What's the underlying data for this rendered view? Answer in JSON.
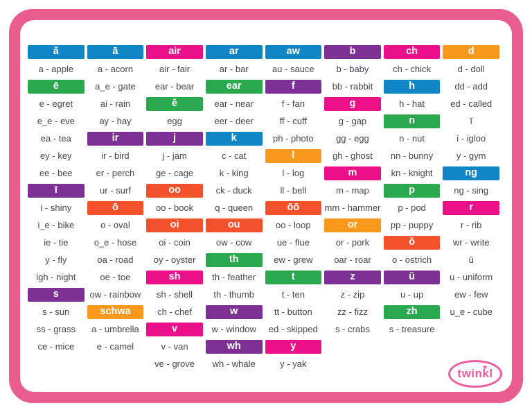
{
  "palette": {
    "blue": "#1186c6",
    "green": "#29a84d",
    "purple": "#7d3194",
    "pink": "#ec0f8a",
    "red": "#f3512b",
    "orange": "#f8981d",
    "frame_pink": "#e95c90",
    "logo_pink": "#ef5ba1",
    "text": "#474350"
  },
  "logo": {
    "label": "twinkl",
    "star": "★"
  },
  "columns": [
    {
      "cells": [
        {
          "t": "h",
          "label": "ă",
          "color": "blue"
        },
        {
          "t": "w",
          "label": "a - apple"
        },
        {
          "t": "h",
          "label": "ē",
          "color": "green"
        },
        {
          "t": "w",
          "label": "e - egret"
        },
        {
          "t": "w",
          "label": "e_e - eve"
        },
        {
          "t": "w",
          "label": "ea - tea"
        },
        {
          "t": "w",
          "label": "ey - key"
        },
        {
          "t": "w",
          "label": "ee - bee"
        },
        {
          "t": "h",
          "label": "ī",
          "color": "purple"
        },
        {
          "t": "w",
          "label": "i - shiny"
        },
        {
          "t": "w",
          "label": "i_e - bike"
        },
        {
          "t": "w",
          "label": "ie - tie"
        },
        {
          "t": "w",
          "label": "y - fly"
        },
        {
          "t": "w",
          "label": "igh - night"
        },
        {
          "t": "h",
          "label": "s",
          "color": "purple"
        },
        {
          "t": "w",
          "label": "s - sun"
        },
        {
          "t": "w",
          "label": "ss - grass"
        },
        {
          "t": "w",
          "label": "ce - mice"
        }
      ]
    },
    {
      "cells": [
        {
          "t": "h",
          "label": "ā",
          "color": "blue"
        },
        {
          "t": "w",
          "label": "a - acorn"
        },
        {
          "t": "w",
          "label": "a_e - gate"
        },
        {
          "t": "w",
          "label": "ai - rain"
        },
        {
          "t": "w",
          "label": "ay - hay"
        },
        {
          "t": "h",
          "label": "ir",
          "color": "purple"
        },
        {
          "t": "w",
          "label": "ir - bird"
        },
        {
          "t": "w",
          "label": "er - perch"
        },
        {
          "t": "w",
          "label": "ur - surf"
        },
        {
          "t": "h",
          "label": "ō",
          "color": "red"
        },
        {
          "t": "w",
          "label": "o - oval"
        },
        {
          "t": "w",
          "label": "o_e - hose"
        },
        {
          "t": "w",
          "label": "oa - road"
        },
        {
          "t": "w",
          "label": "oe - toe"
        },
        {
          "t": "w",
          "label": "ow - rainbow"
        },
        {
          "t": "h",
          "label": "schwa",
          "color": "orange"
        },
        {
          "t": "w",
          "label": "a - umbrella"
        },
        {
          "t": "w",
          "label": "e - camel"
        }
      ]
    },
    {
      "cells": [
        {
          "t": "h",
          "label": "air",
          "color": "pink"
        },
        {
          "t": "w",
          "label": "air - fair"
        },
        {
          "t": "w",
          "label": "ear - bear"
        },
        {
          "t": "h",
          "label": "ĕ",
          "color": "green"
        },
        {
          "t": "w",
          "label": "egg"
        },
        {
          "t": "h",
          "label": "j",
          "color": "purple"
        },
        {
          "t": "w",
          "label": "j - jam"
        },
        {
          "t": "w",
          "label": "ge - cage"
        },
        {
          "t": "h",
          "label": "oo",
          "color": "red"
        },
        {
          "t": "w",
          "label": "oo - book"
        },
        {
          "t": "h",
          "label": "oi",
          "color": "red"
        },
        {
          "t": "w",
          "label": "oi - coin"
        },
        {
          "t": "w",
          "label": "oy - oyster"
        },
        {
          "t": "h",
          "label": "sh",
          "color": "pink"
        },
        {
          "t": "w",
          "label": "sh - shell"
        },
        {
          "t": "w",
          "label": "ch - chef"
        },
        {
          "t": "h",
          "label": "v",
          "color": "pink"
        },
        {
          "t": "w",
          "label": "v - van"
        },
        {
          "t": "w",
          "label": "ve - grove"
        }
      ]
    },
    {
      "cells": [
        {
          "t": "h",
          "label": "ar",
          "color": "blue"
        },
        {
          "t": "w",
          "label": "ar - bar"
        },
        {
          "t": "h",
          "label": "ear",
          "color": "green"
        },
        {
          "t": "w",
          "label": "ear - near"
        },
        {
          "t": "w",
          "label": "eer - deer"
        },
        {
          "t": "h",
          "label": "k",
          "color": "blue"
        },
        {
          "t": "w",
          "label": "c - cat"
        },
        {
          "t": "w",
          "label": "k - king"
        },
        {
          "t": "w",
          "label": "ck - duck"
        },
        {
          "t": "w",
          "label": "q - queen"
        },
        {
          "t": "h",
          "label": "ou",
          "color": "red"
        },
        {
          "t": "w",
          "label": "ow - cow"
        },
        {
          "t": "h",
          "label": "th",
          "color": "green"
        },
        {
          "t": "w",
          "label": "th - feather"
        },
        {
          "t": "w",
          "label": "th - thumb"
        },
        {
          "t": "h",
          "label": "w",
          "color": "purple"
        },
        {
          "t": "w",
          "label": "w - window"
        },
        {
          "t": "h",
          "label": "wh",
          "color": "purple"
        },
        {
          "t": "w",
          "label": "wh - whale"
        }
      ]
    },
    {
      "cells": [
        {
          "t": "h",
          "label": "aw",
          "color": "blue"
        },
        {
          "t": "w",
          "label": "au - sauce"
        },
        {
          "t": "h",
          "label": "f",
          "color": "purple"
        },
        {
          "t": "w",
          "label": "f - fan"
        },
        {
          "t": "w",
          "label": "ff - cuff"
        },
        {
          "t": "w",
          "label": "ph - photo"
        },
        {
          "t": "h",
          "label": "l",
          "color": "orange"
        },
        {
          "t": "w",
          "label": "l - log"
        },
        {
          "t": "w",
          "label": "ll - bell"
        },
        {
          "t": "h",
          "label": "ōō",
          "color": "red"
        },
        {
          "t": "w",
          "label": "oo - loop"
        },
        {
          "t": "w",
          "label": "ue - flue"
        },
        {
          "t": "w",
          "label": "ew - grew"
        },
        {
          "t": "h",
          "label": "t",
          "color": "green"
        },
        {
          "t": "w",
          "label": "t - ten"
        },
        {
          "t": "w",
          "label": "tt - button"
        },
        {
          "t": "w",
          "label": "ed - skipped"
        },
        {
          "t": "h",
          "label": "y",
          "color": "pink"
        },
        {
          "t": "w",
          "label": "y - yak"
        }
      ]
    },
    {
      "cells": [
        {
          "t": "h",
          "label": "b",
          "color": "purple"
        },
        {
          "t": "w",
          "label": "b - baby"
        },
        {
          "t": "w",
          "label": "bb - rabbit"
        },
        {
          "t": "h",
          "label": "g",
          "color": "pink"
        },
        {
          "t": "w",
          "label": "g - gap"
        },
        {
          "t": "w",
          "label": "gg - egg"
        },
        {
          "t": "w",
          "label": "gh - ghost"
        },
        {
          "t": "h",
          "label": "m",
          "color": "pink"
        },
        {
          "t": "w",
          "label": "m - map"
        },
        {
          "t": "w",
          "label": "mm - hammer"
        },
        {
          "t": "h",
          "label": "or",
          "color": "orange"
        },
        {
          "t": "w",
          "label": "or - pork"
        },
        {
          "t": "w",
          "label": "oar - roar"
        },
        {
          "t": "h",
          "label": "z",
          "color": "purple"
        },
        {
          "t": "w",
          "label": "z - zip"
        },
        {
          "t": "w",
          "label": "zz - fizz"
        },
        {
          "t": "w",
          "label": "s - crabs"
        }
      ]
    },
    {
      "cells": [
        {
          "t": "h",
          "label": "ch",
          "color": "pink"
        },
        {
          "t": "w",
          "label": "ch - chick"
        },
        {
          "t": "h",
          "label": "h",
          "color": "blue"
        },
        {
          "t": "w",
          "label": "h - hat"
        },
        {
          "t": "h",
          "label": "n",
          "color": "green"
        },
        {
          "t": "w",
          "label": "n - nut"
        },
        {
          "t": "w",
          "label": "nn - bunny"
        },
        {
          "t": "w",
          "label": "kn - knight"
        },
        {
          "t": "h",
          "label": "p",
          "color": "green"
        },
        {
          "t": "w",
          "label": "p - pod"
        },
        {
          "t": "w",
          "label": "pp - puppy"
        },
        {
          "t": "h",
          "label": "ŏ",
          "color": "red"
        },
        {
          "t": "w",
          "label": "o - ostrich"
        },
        {
          "t": "h",
          "label": "ŭ",
          "color": "purple"
        },
        {
          "t": "w",
          "label": "u - up"
        },
        {
          "t": "h",
          "label": "zh",
          "color": "green"
        },
        {
          "t": "w",
          "label": "s - treasure"
        }
      ]
    },
    {
      "cells": [
        {
          "t": "h",
          "label": "d",
          "color": "orange"
        },
        {
          "t": "w",
          "label": "d - doll"
        },
        {
          "t": "w",
          "label": "dd - add"
        },
        {
          "t": "w",
          "label": "ed - called"
        },
        {
          "t": "w",
          "label": "ĭ"
        },
        {
          "t": "w",
          "label": "i - igloo"
        },
        {
          "t": "w",
          "label": "y - gym"
        },
        {
          "t": "h",
          "label": "ng",
          "color": "blue"
        },
        {
          "t": "w",
          "label": "ng - sing"
        },
        {
          "t": "h",
          "label": "r",
          "color": "pink"
        },
        {
          "t": "w",
          "label": "r - rib"
        },
        {
          "t": "w",
          "label": "wr - write"
        },
        {
          "t": "w",
          "label": "ū"
        },
        {
          "t": "w",
          "label": "u - uniform"
        },
        {
          "t": "w",
          "label": "ew - few"
        },
        {
          "t": "w",
          "label": "u_e - cube"
        }
      ]
    }
  ]
}
